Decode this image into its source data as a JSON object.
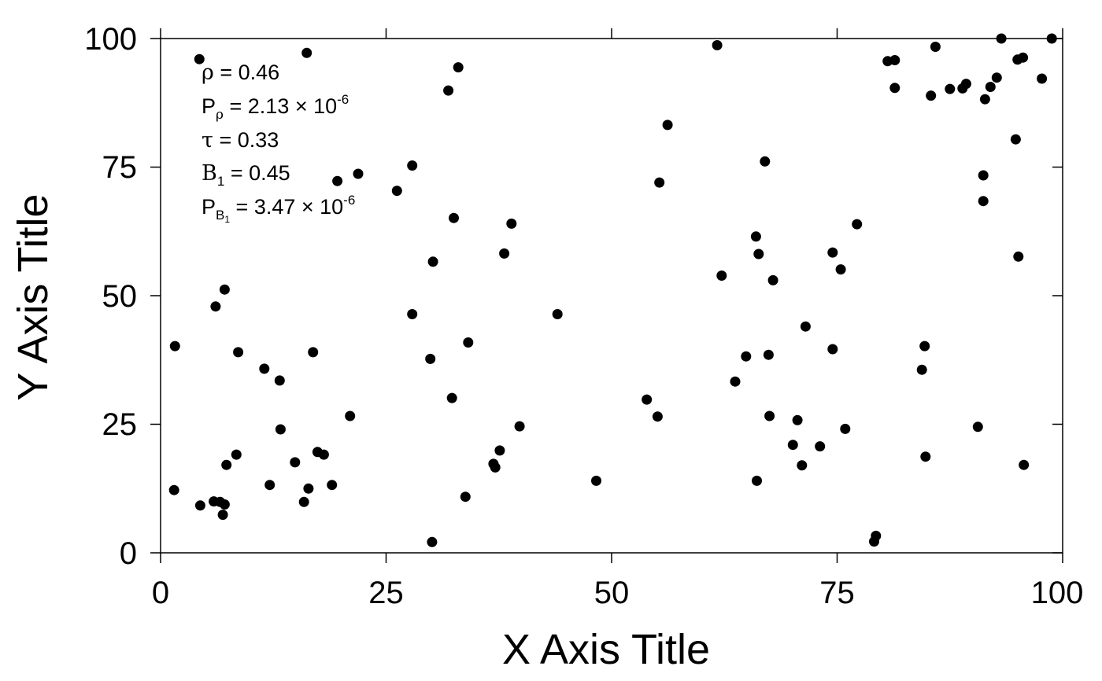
{
  "chart_data": {
    "type": "scatter",
    "title": "",
    "xlabel": "X Axis Title",
    "ylabel": "Y Axis Title",
    "xlim": [
      0,
      100
    ],
    "ylim": [
      0,
      100
    ],
    "x_ticks": [
      "0",
      "25",
      "50",
      "75",
      "100"
    ],
    "y_ticks": [
      "0",
      "25",
      "50",
      "75",
      "100"
    ],
    "grid": false,
    "marker_color": "#000000",
    "annotations": {
      "rho_symbol": "ρ",
      "rho_value": " = 0.46",
      "p_rho_P": "P",
      "p_rho_sub": "ρ",
      "p_rho_value": " = 2.13 × 10",
      "p_rho_exp": "-6",
      "tau_symbol": "τ",
      "tau_value": " = 0.33",
      "b1_B": "B",
      "b1_sub": "1",
      "b1_value": " = 0.45",
      "p_b1_P": "P",
      "p_b1_sub": "B",
      "p_b1_subsub": "1",
      "p_b1_value": " = 3.47 × 10",
      "p_b1_exp": "-6"
    },
    "points": [
      [
        1.5,
        12.2
      ],
      [
        1.6,
        40.2
      ],
      [
        4.3,
        96.0
      ],
      [
        4.4,
        9.2
      ],
      [
        5.9,
        10.0
      ],
      [
        6.1,
        47.9
      ],
      [
        6.6,
        9.9
      ],
      [
        6.9,
        7.4
      ],
      [
        7.1,
        9.4
      ],
      [
        7.1,
        51.2
      ],
      [
        7.3,
        17.1
      ],
      [
        8.4,
        19.1
      ],
      [
        8.6,
        39.0
      ],
      [
        11.5,
        35.8
      ],
      [
        12.1,
        13.2
      ],
      [
        13.2,
        33.5
      ],
      [
        13.3,
        24.0
      ],
      [
        14.9,
        17.6
      ],
      [
        15.9,
        9.9
      ],
      [
        16.2,
        97.2
      ],
      [
        16.4,
        12.5
      ],
      [
        16.9,
        39.0
      ],
      [
        17.4,
        19.6
      ],
      [
        18.1,
        19.1
      ],
      [
        19.0,
        13.2
      ],
      [
        19.6,
        72.3
      ],
      [
        21.0,
        26.6
      ],
      [
        21.9,
        73.7
      ],
      [
        26.2,
        70.4
      ],
      [
        27.9,
        46.4
      ],
      [
        27.9,
        75.3
      ],
      [
        29.9,
        37.7
      ],
      [
        30.1,
        2.1
      ],
      [
        30.2,
        56.6
      ],
      [
        31.9,
        89.9
      ],
      [
        32.3,
        30.1
      ],
      [
        32.5,
        65.1
      ],
      [
        33.0,
        94.4
      ],
      [
        33.8,
        10.9
      ],
      [
        34.1,
        40.9
      ],
      [
        36.9,
        17.3
      ],
      [
        37.1,
        16.6
      ],
      [
        37.6,
        19.9
      ],
      [
        38.1,
        58.2
      ],
      [
        38.9,
        64.0
      ],
      [
        39.8,
        24.6
      ],
      [
        44.0,
        46.4
      ],
      [
        48.3,
        14.0
      ],
      [
        53.9,
        29.8
      ],
      [
        55.1,
        26.5
      ],
      [
        55.3,
        72.0
      ],
      [
        56.2,
        83.2
      ],
      [
        61.7,
        98.7
      ],
      [
        62.2,
        53.9
      ],
      [
        63.7,
        33.3
      ],
      [
        64.9,
        38.2
      ],
      [
        66.0,
        61.5
      ],
      [
        66.1,
        14.0
      ],
      [
        66.3,
        58.1
      ],
      [
        67.0,
        76.1
      ],
      [
        67.4,
        38.5
      ],
      [
        67.5,
        26.6
      ],
      [
        67.9,
        53.0
      ],
      [
        70.1,
        21.0
      ],
      [
        70.6,
        25.8
      ],
      [
        71.1,
        17.0
      ],
      [
        71.5,
        44.0
      ],
      [
        73.1,
        20.7
      ],
      [
        74.5,
        58.4
      ],
      [
        74.5,
        39.6
      ],
      [
        75.4,
        55.1
      ],
      [
        75.9,
        24.1
      ],
      [
        77.2,
        63.9
      ],
      [
        79.1,
        2.2
      ],
      [
        79.3,
        3.3
      ],
      [
        80.6,
        95.6
      ],
      [
        81.4,
        90.4
      ],
      [
        81.4,
        95.8
      ],
      [
        84.4,
        35.6
      ],
      [
        84.7,
        40.2
      ],
      [
        84.8,
        18.7
      ],
      [
        85.4,
        88.9
      ],
      [
        85.9,
        98.4
      ],
      [
        87.5,
        90.2
      ],
      [
        88.9,
        90.3
      ],
      [
        89.3,
        91.2
      ],
      [
        90.6,
        24.5
      ],
      [
        91.2,
        73.4
      ],
      [
        91.2,
        68.4
      ],
      [
        91.4,
        88.2
      ],
      [
        92.0,
        90.6
      ],
      [
        92.7,
        92.4
      ],
      [
        93.2,
        100.0
      ],
      [
        94.8,
        80.4
      ],
      [
        95.0,
        95.9
      ],
      [
        95.1,
        57.6
      ],
      [
        95.6,
        96.3
      ],
      [
        95.7,
        17.1
      ],
      [
        97.7,
        92.2
      ],
      [
        98.8,
        100.0
      ]
    ]
  }
}
